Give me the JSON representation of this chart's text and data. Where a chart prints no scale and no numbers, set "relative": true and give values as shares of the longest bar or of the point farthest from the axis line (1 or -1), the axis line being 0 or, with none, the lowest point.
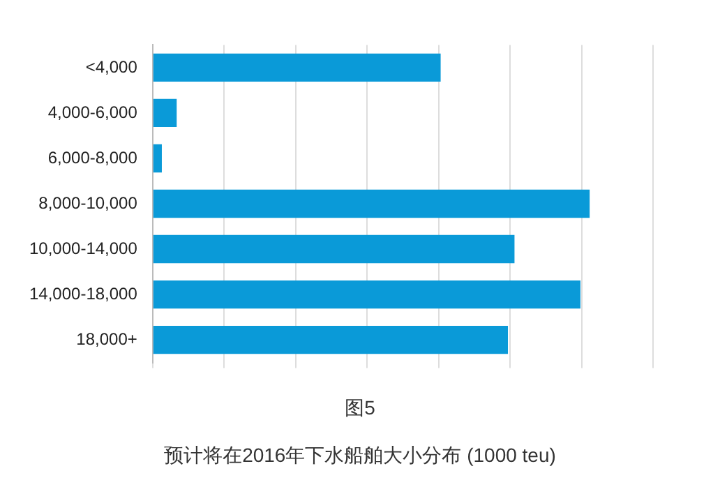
{
  "chart_data": {
    "type": "bar",
    "orientation": "horizontal",
    "relative": true,
    "categories": [
      "<4,000",
      "4,000-6,000",
      "6,000-8,000",
      "8,000-10,000",
      "10,000-14,000",
      "14,000-18,000",
      "18,000+"
    ],
    "values": [
      0.659,
      0.055,
      0.021,
      1,
      0.828,
      0.979,
      0.813
    ],
    "color": "#0a9ad8",
    "grid": "x",
    "legend": false,
    "annotations": [
      "图5",
      "预计将在2016年下水船舶大小分布 (1000 teu)"
    ]
  }
}
